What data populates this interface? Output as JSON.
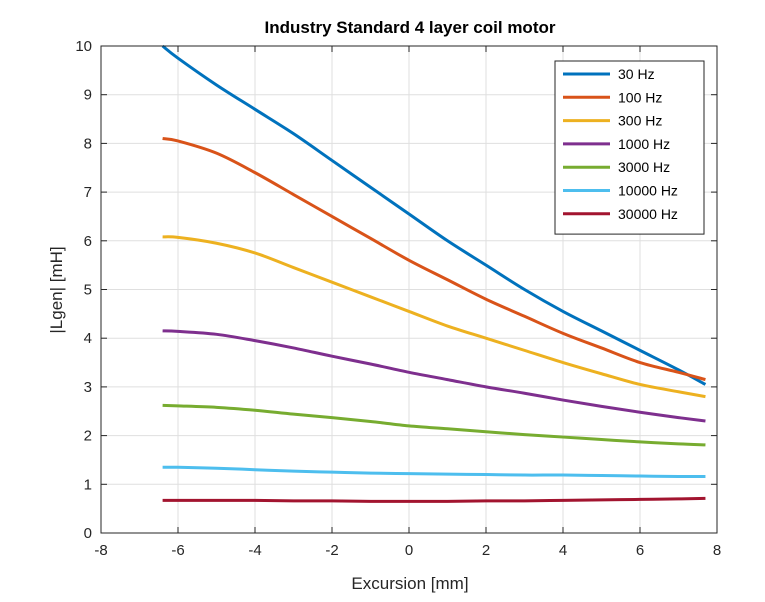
{
  "chart_data": {
    "type": "line",
    "title": "Industry Standard 4 layer coil motor",
    "xlabel": "Excursion [mm]",
    "ylabel": "|Lgen| [mH]",
    "xlim": [
      -8,
      8
    ],
    "ylim": [
      0,
      10
    ],
    "xticks": [
      -8,
      -6,
      -4,
      -2,
      0,
      2,
      4,
      6,
      8
    ],
    "yticks": [
      0,
      1,
      2,
      3,
      4,
      5,
      6,
      7,
      8,
      9,
      10
    ],
    "grid": true,
    "legend_position": "top-right",
    "x": [
      -6.4,
      -6,
      -5,
      -4,
      -3,
      -2,
      -1,
      0,
      1,
      2,
      3,
      4,
      5,
      6,
      7,
      7.7
    ],
    "series": [
      {
        "name": "30 Hz",
        "color": "#0072BD",
        "values": [
          10.0,
          9.75,
          9.2,
          8.7,
          8.2,
          7.65,
          7.1,
          6.55,
          6.0,
          5.5,
          5.0,
          4.55,
          4.15,
          3.75,
          3.35,
          3.05
        ]
      },
      {
        "name": "100 Hz",
        "color": "#D95319",
        "values": [
          8.1,
          8.05,
          7.8,
          7.4,
          6.95,
          6.5,
          6.05,
          5.6,
          5.2,
          4.8,
          4.45,
          4.1,
          3.8,
          3.5,
          3.3,
          3.15
        ]
      },
      {
        "name": "300 Hz",
        "color": "#EDB120",
        "values": [
          6.08,
          6.07,
          5.95,
          5.75,
          5.45,
          5.15,
          4.85,
          4.55,
          4.25,
          4.0,
          3.75,
          3.5,
          3.27,
          3.05,
          2.9,
          2.8
        ]
      },
      {
        "name": "1000 Hz",
        "color": "#7E2F8E",
        "values": [
          4.15,
          4.14,
          4.08,
          3.95,
          3.8,
          3.63,
          3.47,
          3.3,
          3.15,
          3.0,
          2.87,
          2.73,
          2.6,
          2.48,
          2.37,
          2.3
        ]
      },
      {
        "name": "3000 Hz",
        "color": "#77AC30",
        "values": [
          2.62,
          2.61,
          2.58,
          2.52,
          2.44,
          2.37,
          2.29,
          2.2,
          2.14,
          2.08,
          2.02,
          1.97,
          1.92,
          1.87,
          1.83,
          1.81
        ]
      },
      {
        "name": "10000 Hz",
        "color": "#4DBEEE",
        "values": [
          1.35,
          1.35,
          1.33,
          1.3,
          1.27,
          1.25,
          1.23,
          1.22,
          1.21,
          1.2,
          1.19,
          1.19,
          1.18,
          1.17,
          1.16,
          1.16
        ]
      },
      {
        "name": "30000 Hz",
        "color": "#A2142F",
        "values": [
          0.67,
          0.67,
          0.67,
          0.67,
          0.66,
          0.66,
          0.65,
          0.65,
          0.65,
          0.66,
          0.66,
          0.67,
          0.68,
          0.69,
          0.7,
          0.71
        ]
      }
    ]
  }
}
